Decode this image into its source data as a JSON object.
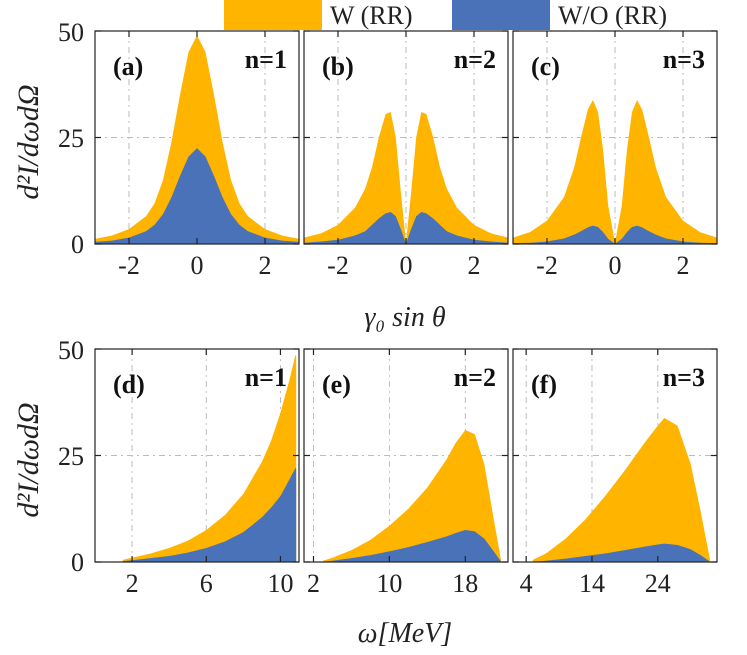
{
  "colors": {
    "with_rr": "#FFB400",
    "without_rr": "#4A72B8"
  },
  "legend": [
    {
      "label": "W (RR)",
      "color": "#FFB400"
    },
    {
      "label": "W/O (RR)",
      "color": "#4A72B8"
    }
  ],
  "row_labels": {
    "top": {
      "ylabel": "d²I/dωdΩ",
      "xlabel": "γ₀ sin θ"
    },
    "bottom": {
      "ylabel": "d²I/dωdΩ",
      "xlabel": "ω[MeV]"
    }
  },
  "chart_data": [
    {
      "type": "area",
      "panel_label": "(a)",
      "harmonic": "n=1",
      "xlim": [
        -3,
        3
      ],
      "ylim": [
        0,
        50
      ],
      "xticks": [
        -2,
        0,
        2
      ],
      "yticks": [
        0,
        25,
        50
      ],
      "grid": true,
      "x": [
        -3,
        -2.5,
        -2,
        -1.5,
        -1.25,
        -1,
        -0.75,
        -0.5,
        -0.25,
        0,
        0.25,
        0.5,
        0.75,
        1,
        1.25,
        1.5,
        2,
        2.5,
        3
      ],
      "series": [
        {
          "name": "W (RR)",
          "values": [
            1.2,
            2.0,
            3.5,
            6.5,
            9.5,
            15,
            24,
            35,
            45,
            49,
            45,
            35,
            24,
            15,
            9.5,
            6.5,
            3.5,
            2.0,
            1.2
          ]
        },
        {
          "name": "W/O (RR)",
          "values": [
            0.5,
            0.8,
            1.5,
            3.0,
            4.5,
            7,
            11,
            16,
            20.5,
            22.5,
            20.5,
            16,
            11,
            7,
            4.5,
            3.0,
            1.5,
            0.8,
            0.5
          ]
        }
      ]
    },
    {
      "type": "area",
      "panel_label": "(b)",
      "harmonic": "n=2",
      "xlim": [
        -3,
        3
      ],
      "ylim": [
        0,
        50
      ],
      "xticks": [
        -2,
        0,
        2
      ],
      "yticks": [
        0,
        25,
        50
      ],
      "grid": true,
      "x": [
        -3,
        -2.5,
        -2,
        -1.5,
        -1.2,
        -1,
        -0.8,
        -0.6,
        -0.45,
        -0.3,
        -0.15,
        0,
        0.15,
        0.3,
        0.45,
        0.6,
        0.8,
        1,
        1.2,
        1.5,
        2,
        2.5,
        3
      ],
      "series": [
        {
          "name": "W (RR)",
          "values": [
            1.5,
            2.5,
            4.5,
            8.5,
            13,
            18,
            25,
            30.5,
            31,
            25,
            12,
            0.5,
            12,
            25,
            31,
            30.5,
            25,
            18,
            13,
            8.5,
            4.5,
            2.5,
            1.5
          ]
        },
        {
          "name": "W/O (RR)",
          "values": [
            0.3,
            0.6,
            1.0,
            2.0,
            3.0,
            4.5,
            6.0,
            7.2,
            7.5,
            6.5,
            3.5,
            0.1,
            3.5,
            6.5,
            7.5,
            7.2,
            6.0,
            4.5,
            3.0,
            2.0,
            1.0,
            0.6,
            0.3
          ]
        }
      ]
    },
    {
      "type": "area",
      "panel_label": "(c)",
      "harmonic": "n=3",
      "xlim": [
        -3,
        3
      ],
      "ylim": [
        0,
        50
      ],
      "xticks": [
        -2,
        0,
        2
      ],
      "yticks": [
        0,
        25,
        50
      ],
      "grid": true,
      "x": [
        -3,
        -2.5,
        -2,
        -1.5,
        -1.2,
        -1,
        -0.8,
        -0.65,
        -0.5,
        -0.35,
        -0.2,
        0,
        0.2,
        0.35,
        0.5,
        0.65,
        0.8,
        1,
        1.2,
        1.5,
        2,
        2.5,
        3
      ],
      "series": [
        {
          "name": "W (RR)",
          "values": [
            1.5,
            2.8,
            5.5,
            11,
            18,
            25,
            31.5,
            33.8,
            31,
            22,
            9,
            0.3,
            9,
            22,
            31,
            33.8,
            31.5,
            25,
            18,
            11,
            5.5,
            2.8,
            1.5
          ]
        },
        {
          "name": "W/O (RR)",
          "values": [
            0.2,
            0.3,
            0.6,
            1.3,
            2.2,
            3.0,
            3.9,
            4.3,
            4.0,
            2.8,
            1.2,
            0.05,
            1.2,
            2.8,
            4.0,
            4.3,
            3.9,
            3.0,
            2.2,
            1.3,
            0.6,
            0.3,
            0.2
          ]
        }
      ]
    },
    {
      "type": "area",
      "panel_label": "(d)",
      "harmonic": "n=1",
      "xlim": [
        0,
        11
      ],
      "ylim": [
        0,
        50
      ],
      "xticks": [
        2,
        6,
        10
      ],
      "yticks": [
        0,
        25,
        50
      ],
      "grid": true,
      "x": [
        1.5,
        2,
        3,
        4,
        5,
        6,
        7,
        8,
        9,
        9.5,
        10,
        10.5,
        10.8,
        10.85
      ],
      "series": [
        {
          "name": "W (RR)",
          "values": [
            0.5,
            1.0,
            2.0,
            3.3,
            5.0,
            7.5,
            11,
            16,
            23.5,
            28.5,
            35,
            43,
            48.5,
            48.5
          ]
        },
        {
          "name": "W/O (RR)",
          "values": [
            0.2,
            0.4,
            0.9,
            1.4,
            2.2,
            3.3,
            4.8,
            7.0,
            10.5,
            12.8,
            15.5,
            19.5,
            22,
            22
          ]
        }
      ]
    },
    {
      "type": "area",
      "panel_label": "(e)",
      "harmonic": "n=2",
      "xlim": [
        1,
        22.5
      ],
      "ylim": [
        0,
        50
      ],
      "xticks": [
        2,
        10,
        18
      ],
      "yticks": [
        0,
        25,
        50
      ],
      "grid": true,
      "x": [
        3,
        4,
        6,
        8,
        10,
        12,
        14,
        16,
        17,
        18,
        19,
        20,
        21,
        21.8
      ],
      "series": [
        {
          "name": "W (RR)",
          "values": [
            0.3,
            1.0,
            2.8,
            5.2,
            8.5,
            12.5,
            17.5,
            24,
            28,
            31,
            30,
            23,
            10,
            0
          ]
        },
        {
          "name": "W/O (RR)",
          "values": [
            0.1,
            0.3,
            0.9,
            1.6,
            2.5,
            3.5,
            4.7,
            6.0,
            6.8,
            7.5,
            7.2,
            5.5,
            2.5,
            0
          ]
        }
      ]
    },
    {
      "type": "area",
      "panel_label": "(f)",
      "harmonic": "n=3",
      "xlim": [
        2,
        33
      ],
      "ylim": [
        0,
        50
      ],
      "xticks": [
        4,
        14,
        24
      ],
      "yticks": [
        0,
        25,
        50
      ],
      "grid": true,
      "x": [
        5,
        7,
        10,
        13,
        16,
        19,
        22,
        24,
        25,
        27,
        29,
        30.5,
        32
      ],
      "series": [
        {
          "name": "W (RR)",
          "values": [
            0.5,
            2.0,
            5.5,
            10,
            15.5,
            21.5,
            28,
            32,
            33.8,
            32,
            23,
            12,
            0
          ]
        },
        {
          "name": "W/O (RR)",
          "values": [
            0.1,
            0.3,
            0.8,
            1.4,
            2.0,
            2.8,
            3.6,
            4.1,
            4.3,
            4.0,
            3.0,
            1.6,
            0
          ]
        }
      ]
    }
  ]
}
